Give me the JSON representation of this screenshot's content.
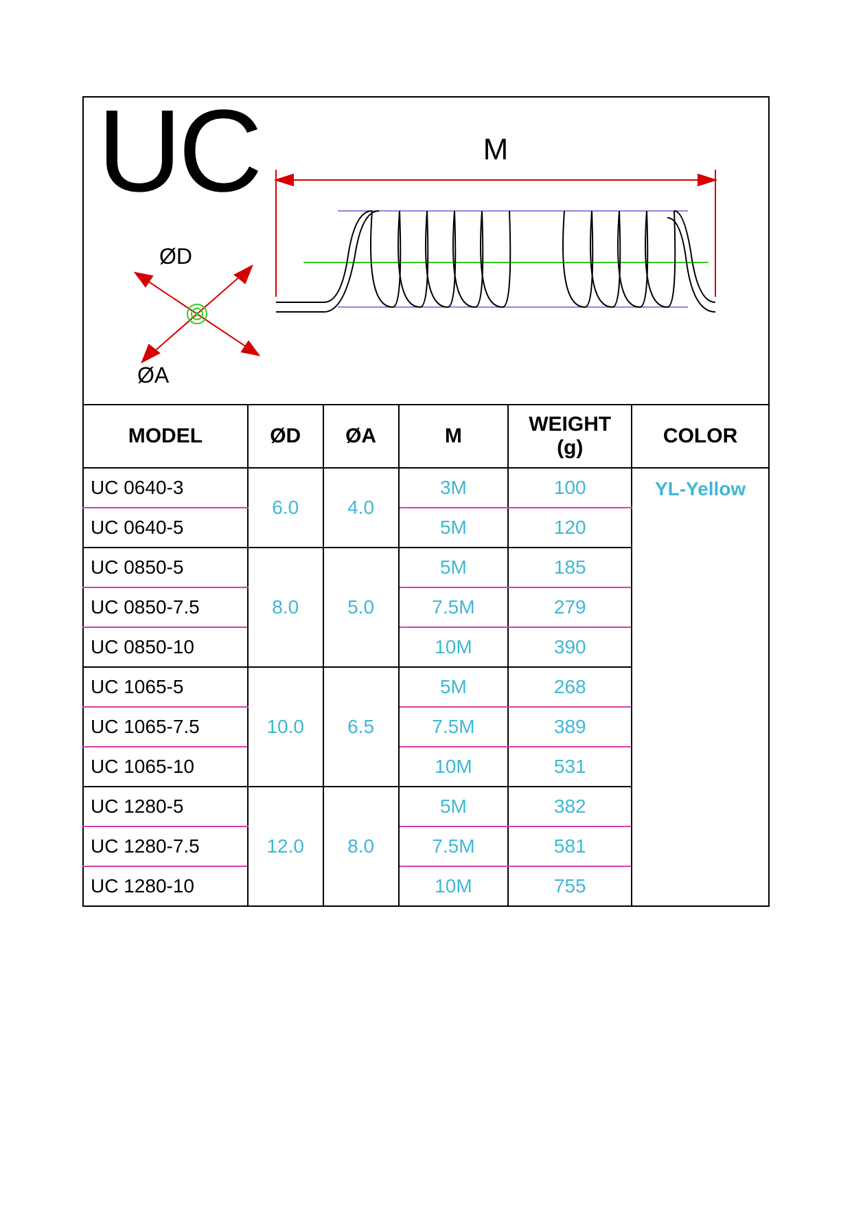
{
  "title": "UC",
  "diagram": {
    "label_M": "M",
    "label_OD": "ØD",
    "label_OA": "ØA",
    "stroke_dim": "#d40000",
    "stroke_coil": "#000000",
    "stroke_center": "#34c924",
    "stroke_top": "#6060e0"
  },
  "table": {
    "columns": [
      "MODEL",
      "ØD",
      "ØA",
      "M",
      "WEIGHT (g)",
      "COLOR"
    ],
    "color_label": "YL-Yellow",
    "value_color": "#3fb8d4",
    "groups": [
      {
        "od": "6.0",
        "oa": "4.0",
        "rows": [
          {
            "model": "UC 0640-3",
            "m": "3M",
            "w": "100"
          },
          {
            "model": "UC 0640-5",
            "m": "5M",
            "w": "120"
          }
        ]
      },
      {
        "od": "8.0",
        "oa": "5.0",
        "rows": [
          {
            "model": "UC 0850-5",
            "m": "5M",
            "w": "185"
          },
          {
            "model": "UC 0850-7.5",
            "m": "7.5M",
            "w": "279"
          },
          {
            "model": "UC 0850-10",
            "m": "10M",
            "w": "390"
          }
        ]
      },
      {
        "od": "10.0",
        "oa": "6.5",
        "rows": [
          {
            "model": "UC 1065-5",
            "m": "5M",
            "w": "268"
          },
          {
            "model": "UC 1065-7.5",
            "m": "7.5M",
            "w": "389"
          },
          {
            "model": "UC 1065-10",
            "m": "10M",
            "w": "531"
          }
        ]
      },
      {
        "od": "12.0",
        "oa": "8.0",
        "rows": [
          {
            "model": "UC 1280-5",
            "m": "5M",
            "w": "382"
          },
          {
            "model": "UC 1280-7.5",
            "m": "7.5M",
            "w": "581"
          },
          {
            "model": "UC 1280-10",
            "m": "10M",
            "w": "755"
          }
        ]
      }
    ]
  }
}
